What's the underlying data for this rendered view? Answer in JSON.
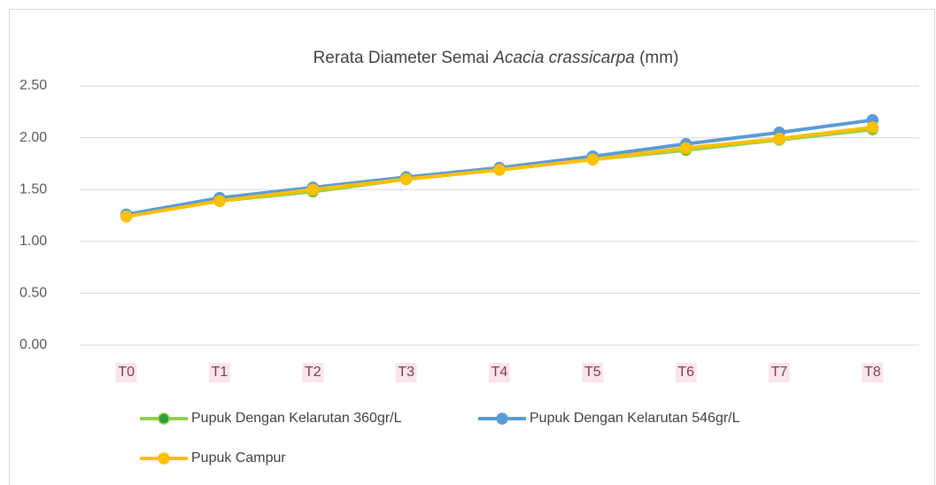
{
  "chart_data": {
    "type": "line",
    "title": [
      "Rerata  Diameter Semai",
      "Acacia crassicarpa",
      "(mm)"
    ],
    "categories": [
      "T0",
      "T1",
      "T2",
      "T3",
      "T4",
      "T5",
      "T6",
      "T7",
      "T8"
    ],
    "series": [
      {
        "name": "Pupuk Dengan Kelarutan 360gr/L",
        "color": "#92d050",
        "marker_color": "#2e9e3a",
        "values": [
          1.25,
          1.39,
          1.48,
          1.6,
          1.69,
          1.79,
          1.88,
          1.98,
          2.08
        ]
      },
      {
        "name": "Pupuk Dengan Kelarutan 546gr/L",
        "color": "#5b9bd5",
        "marker_color": "#5b9bd5",
        "values": [
          1.26,
          1.42,
          1.52,
          1.62,
          1.71,
          1.82,
          1.94,
          2.05,
          2.17
        ]
      },
      {
        "name": "Pupuk Campur",
        "color": "#ffc000",
        "marker_color": "#ffc000",
        "values": [
          1.24,
          1.39,
          1.5,
          1.6,
          1.69,
          1.79,
          1.9,
          1.99,
          2.1
        ]
      }
    ],
    "ylim": [
      0,
      2.5
    ],
    "yticks": [
      {
        "value": 0,
        "label": "0.00"
      },
      {
        "value": 0.5,
        "label": "0.50"
      },
      {
        "value": 1,
        "label": "1.00"
      },
      {
        "value": 1.5,
        "label": "1.50"
      },
      {
        "value": 2,
        "label": "2.00"
      },
      {
        "value": 2.5,
        "label": "2.50"
      }
    ],
    "grid": true,
    "legend": "bottom"
  }
}
